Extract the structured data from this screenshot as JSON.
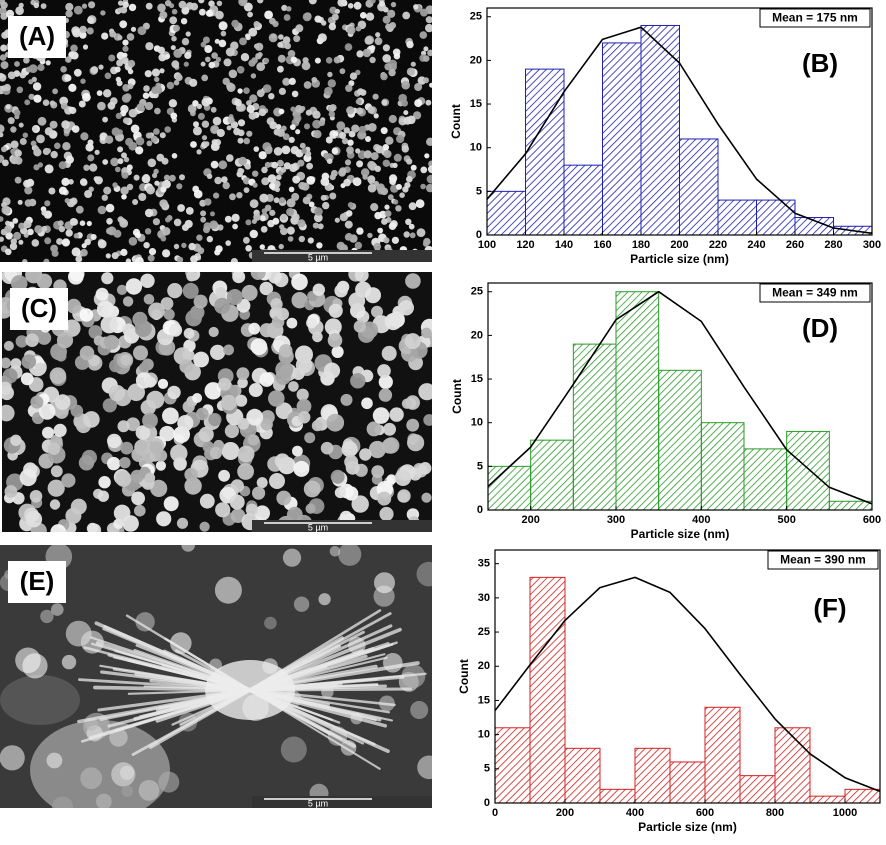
{
  "images": [
    {
      "label": "(A)",
      "scale_bar": "5 µm"
    },
    {
      "label": "(C)",
      "scale_bar": "5 µm"
    },
    {
      "label": "(E)",
      "scale_bar": "5 µm"
    }
  ],
  "chart_data": [
    {
      "type": "histogram",
      "panel_label": "(B)",
      "annotation": "Mean = 175 nm",
      "x_label": "Particle size (nm)",
      "y_label": "Count",
      "color": "#1f1fb4",
      "bins": [
        100,
        120,
        140,
        160,
        180,
        200,
        220,
        240,
        260,
        280,
        300
      ],
      "values": [
        5,
        19,
        8,
        22,
        24,
        11,
        4,
        4,
        2,
        1
      ],
      "xlim": [
        100,
        300
      ],
      "xticks": [
        100,
        120,
        140,
        160,
        180,
        200,
        220,
        240,
        260,
        280,
        300
      ],
      "ylim": [
        0,
        26
      ],
      "yticks": [
        0,
        5,
        10,
        15,
        20,
        25
      ],
      "fit_curve": {
        "color": "#000000",
        "x": [
          100,
          120,
          140,
          160,
          180,
          200,
          220,
          240,
          260,
          280,
          300
        ],
        "values": [
          4.1,
          9.3,
          16.4,
          22.4,
          23.8,
          19.7,
          12.7,
          6.4,
          2.5,
          0.8,
          0.2
        ]
      }
    },
    {
      "type": "histogram",
      "panel_label": "(D)",
      "annotation": "Mean = 349 nm",
      "x_label": "Particle size (nm)",
      "y_label": "Count",
      "color": "#2a9a2a",
      "bins": [
        150,
        200,
        250,
        300,
        350,
        400,
        450,
        500,
        550,
        600
      ],
      "values": [
        5,
        8,
        19,
        25,
        16,
        10,
        7,
        9,
        1
      ],
      "xlim": [
        150,
        600
      ],
      "xticks": [
        200,
        300,
        400,
        500,
        600
      ],
      "ylim": [
        0,
        26
      ],
      "yticks": [
        0,
        5,
        10,
        15,
        20,
        25
      ],
      "fit_curve": {
        "color": "#000000",
        "x": [
          150,
          200,
          250,
          300,
          350,
          400,
          450,
          500,
          550,
          600
        ],
        "values": [
          2.7,
          7.2,
          14.4,
          21.8,
          25.0,
          21.6,
          14.1,
          6.9,
          2.6,
          0.7
        ]
      }
    },
    {
      "type": "histogram",
      "panel_label": "(F)",
      "annotation": "Mean = 390 nm",
      "x_label": "Particle size (nm)",
      "y_label": "Count",
      "color": "#d42020",
      "bins": [
        0,
        100,
        200,
        300,
        400,
        500,
        600,
        700,
        800,
        900,
        1000,
        1100
      ],
      "values": [
        11,
        33,
        8,
        2,
        8,
        6,
        14,
        4,
        11,
        1,
        2
      ],
      "xlim": [
        0,
        1100
      ],
      "xticks": [
        0,
        200,
        400,
        600,
        800,
        1000
      ],
      "ylim": [
        0,
        37
      ],
      "yticks": [
        0,
        5,
        10,
        15,
        20,
        25,
        30,
        35
      ],
      "fit_curve": {
        "color": "#000000",
        "x": [
          0,
          100,
          200,
          300,
          400,
          500,
          600,
          700,
          800,
          900,
          1000,
          1100
        ],
        "values": [
          13.5,
          20.2,
          26.7,
          31.5,
          33.0,
          30.8,
          25.5,
          18.8,
          12.3,
          7.2,
          3.7,
          1.7
        ]
      }
    }
  ]
}
